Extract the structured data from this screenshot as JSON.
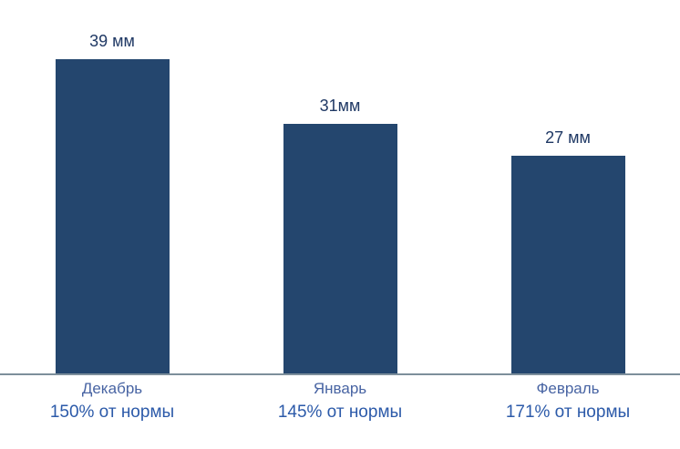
{
  "chart_data": {
    "type": "bar",
    "title": "",
    "xlabel": "",
    "ylabel": "",
    "unit": "мм",
    "categories": [
      "Декабрь",
      "Январь",
      "Февраль"
    ],
    "values": [
      39,
      31,
      27
    ],
    "series": [
      {
        "category": "Декабрь",
        "value": 39,
        "value_label": "39 мм",
        "sub_label": "150% от нормы"
      },
      {
        "category": "Январь",
        "value": 31,
        "value_label": "31мм",
        "sub_label": "145% от нормы"
      },
      {
        "category": "Февраль",
        "value": 27,
        "value_label": "27 мм",
        "sub_label": "171% от нормы"
      }
    ],
    "ylim": [
      0,
      46
    ],
    "grid": false,
    "legend": false,
    "axis": "x-baseline-only",
    "colors": {
      "bar": "#24466E",
      "value_label": "#1F3864",
      "category_label": "#4864A3",
      "sub_label": "#2C5AA9",
      "axis_line": "#7D8F9B",
      "background": "#FFFFFF"
    }
  }
}
